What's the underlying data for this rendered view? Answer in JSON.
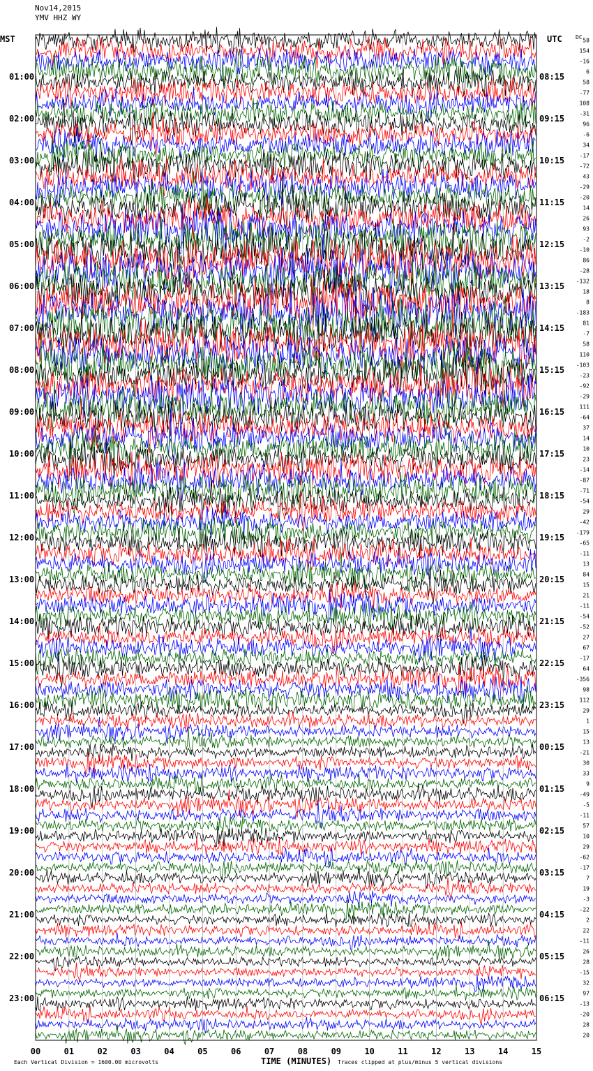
{
  "header": {
    "date": "Nov14,2015",
    "station": "YMV HHZ WY"
  },
  "chart_data": {
    "type": "line",
    "title": "",
    "xlabel": "TIME (MINUTES)",
    "left_timezone": "MST",
    "right_timezone": "UTC",
    "dc_header": "DC",
    "x_ticks": [
      "00",
      "01",
      "02",
      "03",
      "04",
      "05",
      "06",
      "07",
      "08",
      "09",
      "10",
      "11",
      "12",
      "13",
      "14",
      "15"
    ],
    "xlim": [
      0,
      15
    ],
    "left_hour_labels": [
      "01:00",
      "02:00",
      "03:00",
      "04:00",
      "05:00",
      "06:00",
      "07:00",
      "08:00",
      "09:00",
      "10:00",
      "11:00",
      "12:00",
      "13:00",
      "14:00",
      "15:00",
      "16:00",
      "17:00",
      "18:00",
      "19:00",
      "20:00",
      "21:00",
      "22:00",
      "23:00"
    ],
    "right_hour_labels": [
      "08:15",
      "09:15",
      "10:15",
      "11:15",
      "12:15",
      "13:15",
      "14:15",
      "15:15",
      "16:15",
      "17:15",
      "18:15",
      "19:15",
      "20:15",
      "21:15",
      "22:15",
      "23:15",
      "00:15",
      "01:15",
      "02:15",
      "03:15",
      "04:15",
      "05:15",
      "06:15"
    ],
    "trace_colors": [
      "#000000",
      "#ff0000",
      "#0000ff",
      "#006400"
    ],
    "rows_per_hour": 4,
    "trace_count": 96,
    "dc_offsets": [
      58,
      154,
      -16,
      6,
      58,
      -77,
      108,
      -31,
      96,
      -6,
      34,
      -17,
      -72,
      43,
      -29,
      -20,
      14,
      26,
      93,
      -2,
      -10,
      86,
      -28,
      -132,
      18,
      8,
      -183,
      81,
      -7,
      58,
      110,
      -103,
      -23,
      -92,
      -29,
      111,
      -64,
      37,
      14,
      10,
      23,
      -14,
      -87,
      -71,
      -54,
      29,
      -42,
      -179,
      -65,
      -11,
      13,
      84,
      15,
      21,
      -11,
      -54,
      -52,
      27,
      67,
      -17,
      64,
      -356,
      98,
      112,
      29,
      1,
      15,
      13,
      -21,
      30,
      33,
      9,
      -49,
      -5,
      -11,
      57,
      10,
      29,
      -62,
      -17,
      7,
      19,
      -3,
      -22,
      2,
      22,
      -11,
      26,
      28,
      -15,
      32,
      97,
      -13,
      -20,
      28,
      20
    ],
    "amplitude_activity_by_hour": [
      0.72,
      0.7,
      0.75,
      0.78,
      0.9,
      1.0,
      1.0,
      1.0,
      0.92,
      0.85,
      0.8,
      0.72,
      0.68,
      0.66,
      0.62,
      0.64,
      0.48,
      0.46,
      0.5,
      0.44,
      0.42,
      0.38,
      0.37,
      0.38
    ],
    "footer_left": "Each Vertical Division = 1600.00 microvolts",
    "footer_right": "Traces clipped at plus/minus 5 vertical divisions"
  }
}
